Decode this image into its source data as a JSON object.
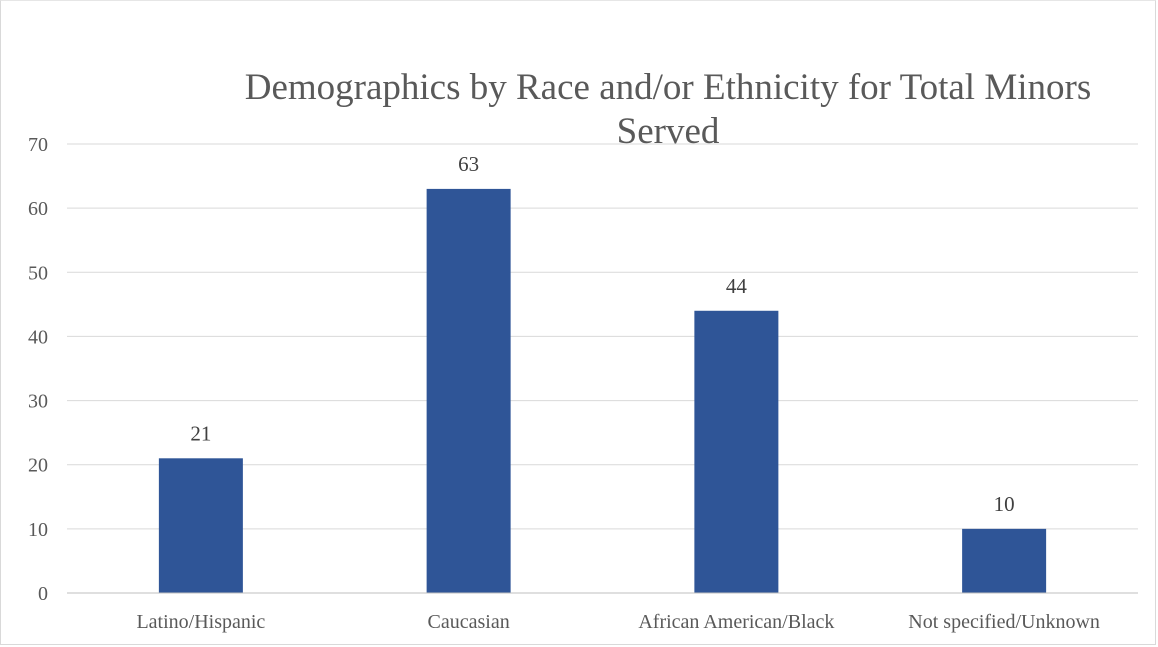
{
  "chart_data": {
    "type": "bar",
    "title_lines": [
      "Demographics by Race and/or Ethnicity for Total Minors",
      "Served"
    ],
    "categories": [
      "Latino/Hispanic",
      "Caucasian",
      "African American/Black",
      "Not specified/Unknown"
    ],
    "values": [
      21,
      63,
      44,
      10
    ],
    "ylim": [
      0,
      70
    ],
    "yticks": [
      0,
      10,
      20,
      30,
      40,
      50,
      60,
      70
    ],
    "grid": true,
    "legend": "none",
    "bar_color": "#2f5597"
  }
}
